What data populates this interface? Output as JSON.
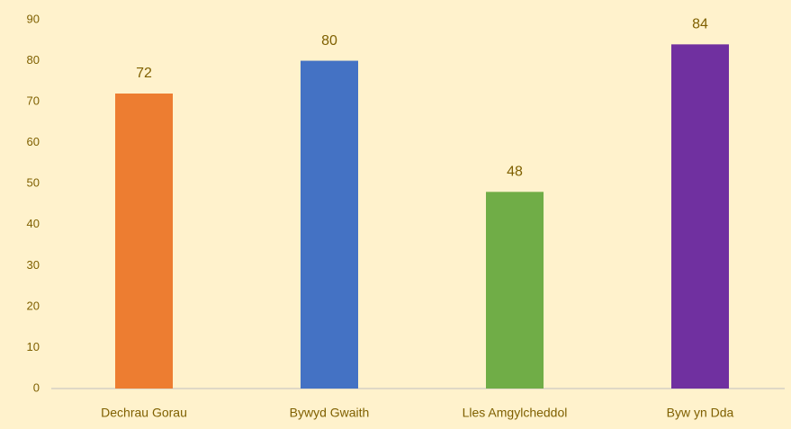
{
  "chart_data": {
    "type": "bar",
    "categories": [
      "Dechrau Gorau",
      "Bywyd Gwaith",
      "Lles Amgylcheddol",
      "Byw yn Dda"
    ],
    "values": [
      72,
      80,
      48,
      84
    ],
    "colors": [
      "#ed7d31",
      "#4472c4",
      "#70ad47",
      "#7030a0"
    ],
    "ylim": [
      0,
      90
    ],
    "yticks": [
      0,
      10,
      20,
      30,
      40,
      50,
      60,
      70,
      80,
      90
    ],
    "grid": false
  }
}
